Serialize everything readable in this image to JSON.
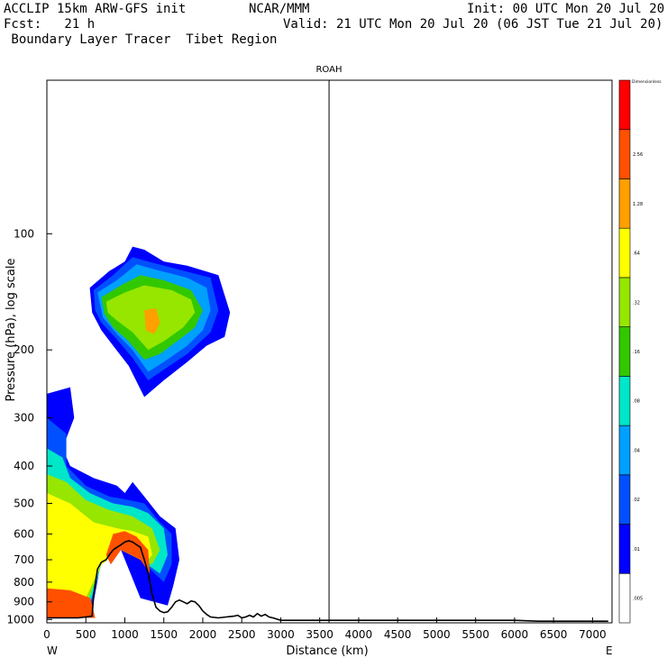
{
  "header": {
    "left_line1": "ACCLIP 15km ARW-GFS init",
    "center_line1": "NCAR/MMM",
    "right_line1": "Init: 00 UTC Mon 20 Jul 20",
    "left_line2": "Fcst:   21 h",
    "right_line2": "Valid: 21 UTC Mon 20 Jul 20 (06 JST Tue 21 Jul 20)",
    "left_line3": " Boundary Layer Tracer  Tibet Region"
  },
  "chart_data": {
    "type": "heatmap",
    "title": "ROAH",
    "xlabel": "Distance (km)",
    "ylabel": "Pressure (hPa), log scale",
    "x_ticks": [
      0,
      500,
      1000,
      1500,
      2000,
      2500,
      3000,
      3500,
      4000,
      4500,
      5000,
      5500,
      6000,
      6500,
      7000
    ],
    "xlim": [
      0,
      7250
    ],
    "y_ticks": [
      100,
      200,
      300,
      400,
      500,
      600,
      700,
      800,
      900,
      1000
    ],
    "ylim": [
      1020,
      40
    ],
    "y_scale": "log",
    "x_end_labels": [
      "W",
      "E"
    ],
    "marker_line_x": 3620,
    "colorbar": {
      "title": "Dimensionless",
      "labels": [
        ".005",
        ".01",
        ".02",
        ".04",
        ".08",
        ".16",
        ".32",
        ".64",
        "1.28",
        "2.56"
      ],
      "colors": [
        "#ffffff",
        "#0000ff",
        "#0050ff",
        "#00a0ff",
        "#00e6c8",
        "#32c800",
        "#96e600",
        "#ffff00",
        "#ffa000",
        "#ff5000",
        "#ff0000"
      ]
    },
    "terrain_pressure": {
      "x": [
        0,
        100,
        200,
        300,
        400,
        500,
        580,
        600,
        650,
        700,
        760,
        800,
        850,
        900,
        950,
        1000,
        1050,
        1100,
        1150,
        1200,
        1250,
        1300,
        1350,
        1400,
        1450,
        1500,
        1550,
        1600,
        1650,
        1700,
        1750,
        1800,
        1850,
        1900,
        1950,
        2000,
        2050,
        2100,
        2200,
        2300,
        2400,
        2450,
        2500,
        2550,
        2600,
        2650,
        2700,
        2750,
        2800,
        2850,
        2900,
        3000,
        3600,
        4200,
        4800,
        5400,
        6000,
        6300,
        6600,
        7000,
        7200
      ],
      "p": [
        990,
        990,
        990,
        990,
        990,
        985,
        980,
        860,
        740,
        710,
        700,
        680,
        660,
        650,
        640,
        630,
        625,
        630,
        640,
        650,
        700,
        760,
        860,
        930,
        950,
        960,
        955,
        930,
        900,
        890,
        900,
        910,
        895,
        900,
        920,
        950,
        970,
        985,
        990,
        985,
        980,
        975,
        990,
        985,
        975,
        985,
        965,
        980,
        970,
        985,
        990,
        1005,
        1005,
        1005,
        1005,
        1005,
        1005,
        1010,
        1010,
        1010,
        1010
      ]
    },
    "tracer_regions": [
      {
        "level": 1,
        "polygon": [
          [
            550,
            138
          ],
          [
            800,
            125
          ],
          [
            1000,
            118
          ],
          [
            1100,
            108
          ],
          [
            1250,
            110
          ],
          [
            1500,
            118
          ],
          [
            1800,
            121
          ],
          [
            2200,
            128
          ],
          [
            2350,
            160
          ],
          [
            2280,
            185
          ],
          [
            2050,
            195
          ],
          [
            1800,
            215
          ],
          [
            1500,
            240
          ],
          [
            1250,
            265
          ],
          [
            1050,
            220
          ],
          [
            850,
            195
          ],
          [
            700,
            178
          ],
          [
            580,
            160
          ]
        ]
      },
      {
        "level": 2,
        "polygon": [
          [
            600,
            140
          ],
          [
            850,
            128
          ],
          [
            1100,
            115
          ],
          [
            1300,
            118
          ],
          [
            1700,
            124
          ],
          [
            2100,
            130
          ],
          [
            2200,
            158
          ],
          [
            2100,
            180
          ],
          [
            1800,
            205
          ],
          [
            1500,
            225
          ],
          [
            1300,
            240
          ],
          [
            1100,
            210
          ],
          [
            900,
            188
          ],
          [
            700,
            170
          ],
          [
            620,
            158
          ]
        ]
      },
      {
        "level": 3,
        "polygon": [
          [
            650,
            142
          ],
          [
            900,
            132
          ],
          [
            1150,
            120
          ],
          [
            1400,
            124
          ],
          [
            1800,
            130
          ],
          [
            2050,
            138
          ],
          [
            2100,
            158
          ],
          [
            2000,
            178
          ],
          [
            1800,
            195
          ],
          [
            1500,
            215
          ],
          [
            1300,
            228
          ],
          [
            1100,
            200
          ],
          [
            900,
            182
          ],
          [
            720,
            165
          ]
        ]
      },
      {
        "level": 5,
        "polygon": [
          [
            700,
            146
          ],
          [
            950,
            136
          ],
          [
            1200,
            128
          ],
          [
            1500,
            132
          ],
          [
            1850,
            140
          ],
          [
            2000,
            158
          ],
          [
            1900,
            175
          ],
          [
            1700,
            188
          ],
          [
            1450,
            205
          ],
          [
            1250,
            212
          ],
          [
            1050,
            190
          ],
          [
            850,
            175
          ],
          [
            740,
            162
          ]
        ]
      },
      {
        "level": 6,
        "polygon": [
          [
            760,
            150
          ],
          [
            1000,
            142
          ],
          [
            1250,
            136
          ],
          [
            1600,
            140
          ],
          [
            1850,
            148
          ],
          [
            1900,
            160
          ],
          [
            1750,
            175
          ],
          [
            1500,
            190
          ],
          [
            1300,
            200
          ],
          [
            1100,
            180
          ],
          [
            900,
            168
          ],
          [
            780,
            160
          ]
        ]
      },
      {
        "level": 8,
        "polygon": [
          [
            1250,
            158
          ],
          [
            1400,
            156
          ],
          [
            1450,
            170
          ],
          [
            1380,
            182
          ],
          [
            1270,
            178
          ]
        ]
      },
      {
        "level": 1,
        "polygon": [
          [
            0,
            260
          ],
          [
            300,
            250
          ],
          [
            350,
            300
          ],
          [
            200,
            360
          ],
          [
            300,
            400
          ],
          [
            600,
            430
          ],
          [
            900,
            450
          ],
          [
            1000,
            470
          ],
          [
            1100,
            440
          ],
          [
            1250,
            480
          ],
          [
            1450,
            540
          ],
          [
            1650,
            580
          ],
          [
            1700,
            700
          ],
          [
            1620,
            820
          ],
          [
            1550,
            920
          ],
          [
            1200,
            880
          ],
          [
            950,
            660
          ],
          [
            700,
            700
          ],
          [
            600,
            900
          ],
          [
            500,
            990
          ],
          [
            0,
            990
          ]
        ]
      },
      {
        "level": 2,
        "polygon": [
          [
            0,
            300
          ],
          [
            250,
            330
          ],
          [
            250,
            400
          ],
          [
            500,
            450
          ],
          [
            800,
            480
          ],
          [
            1050,
            490
          ],
          [
            1250,
            500
          ],
          [
            1450,
            560
          ],
          [
            1600,
            600
          ],
          [
            1600,
            720
          ],
          [
            1500,
            800
          ],
          [
            1200,
            700
          ],
          [
            950,
            660
          ],
          [
            700,
            710
          ],
          [
            580,
            900
          ],
          [
            450,
            990
          ],
          [
            0,
            990
          ]
        ]
      },
      {
        "level": 4,
        "polygon": [
          [
            0,
            360
          ],
          [
            200,
            380
          ],
          [
            300,
            430
          ],
          [
            550,
            470
          ],
          [
            850,
            500
          ],
          [
            1100,
            510
          ],
          [
            1300,
            530
          ],
          [
            1500,
            580
          ],
          [
            1550,
            680
          ],
          [
            1450,
            760
          ],
          [
            1200,
            700
          ],
          [
            950,
            660
          ],
          [
            700,
            720
          ],
          [
            560,
            900
          ],
          [
            420,
            990
          ],
          [
            0,
            990
          ]
        ]
      },
      {
        "level": 6,
        "polygon": [
          [
            0,
            420
          ],
          [
            250,
            440
          ],
          [
            500,
            490
          ],
          [
            800,
            520
          ],
          [
            1100,
            540
          ],
          [
            1350,
            580
          ],
          [
            1450,
            660
          ],
          [
            1350,
            720
          ],
          [
            1200,
            700
          ],
          [
            950,
            660
          ],
          [
            700,
            720
          ],
          [
            540,
            880
          ],
          [
            400,
            990
          ],
          [
            0,
            990
          ]
        ]
      },
      {
        "level": 7,
        "polygon": [
          [
            0,
            470
          ],
          [
            300,
            500
          ],
          [
            600,
            560
          ],
          [
            900,
            580
          ],
          [
            1100,
            590
          ],
          [
            1300,
            610
          ],
          [
            1350,
            680
          ],
          [
            1250,
            720
          ],
          [
            1200,
            700
          ],
          [
            950,
            660
          ],
          [
            700,
            720
          ],
          [
            520,
            860
          ],
          [
            380,
            990
          ],
          [
            0,
            990
          ]
        ]
      },
      {
        "level": 9,
        "polygon": [
          [
            0,
            830
          ],
          [
            300,
            840
          ],
          [
            560,
            880
          ],
          [
            620,
            990
          ],
          [
            0,
            990
          ]
        ]
      },
      {
        "level": 9,
        "polygon": [
          [
            850,
            600
          ],
          [
            1000,
            590
          ],
          [
            1150,
            610
          ],
          [
            1300,
            660
          ],
          [
            1320,
            760
          ],
          [
            1200,
            700
          ],
          [
            950,
            660
          ],
          [
            820,
            720
          ],
          [
            760,
            680
          ]
        ]
      }
    ]
  }
}
